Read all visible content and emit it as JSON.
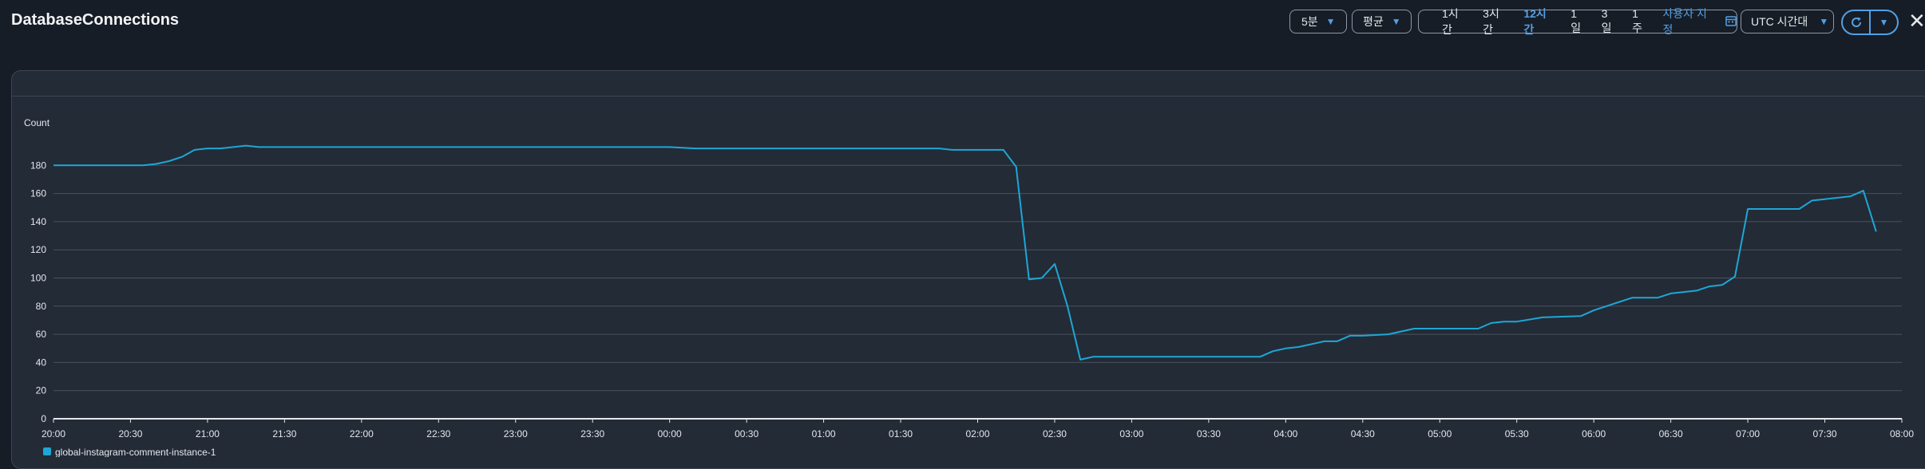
{
  "header": {
    "title": "DatabaseConnections",
    "period": "5분",
    "statistic": "평균",
    "ranges": [
      "1시간",
      "3시간",
      "12시간",
      "1일",
      "3일",
      "1주"
    ],
    "active_range": "12시간",
    "custom_range": "사용자 지정",
    "timezone": "UTC 시간대"
  },
  "colors": {
    "background": "#161d26",
    "panel": "#232b37",
    "accent": "#539fe5",
    "series": "#1ea7d4",
    "grid": "#4a525e"
  },
  "icons": [
    "caret-down-icon",
    "calendar-icon",
    "refresh-icon",
    "close-icon"
  ],
  "chart_data": {
    "type": "line",
    "ylabel": "Count",
    "ylim": [
      0,
      190
    ],
    "yticks": [
      0,
      20,
      40,
      60,
      80,
      100,
      120,
      140,
      160,
      180
    ],
    "xticks": [
      "20:00",
      "20:30",
      "21:00",
      "21:30",
      "22:00",
      "22:30",
      "23:00",
      "23:30",
      "00:00",
      "00:30",
      "01:00",
      "01:30",
      "02:00",
      "02:30",
      "03:00",
      "03:30",
      "04:00",
      "04:30",
      "05:00",
      "05:30",
      "06:00",
      "06:30",
      "07:00",
      "07:30",
      "08:00"
    ],
    "grid": true,
    "legend_position": "bottom-left",
    "series": [
      {
        "name": "global-instagram-comment-instance-1",
        "color": "#1ea7d4",
        "points": [
          [
            "20:00",
            180
          ],
          [
            "20:35",
            180
          ],
          [
            "20:40",
            181
          ],
          [
            "20:45",
            183
          ],
          [
            "20:50",
            186
          ],
          [
            "20:55",
            191
          ],
          [
            "21:00",
            192
          ],
          [
            "21:05",
            192
          ],
          [
            "21:10",
            193
          ],
          [
            "21:15",
            194
          ],
          [
            "21:20",
            193
          ],
          [
            "21:25",
            193
          ],
          [
            "22:00",
            193
          ],
          [
            "23:00",
            193
          ],
          [
            "00:00",
            193
          ],
          [
            "00:10",
            192
          ],
          [
            "01:00",
            192
          ],
          [
            "01:45",
            192
          ],
          [
            "01:50",
            191
          ],
          [
            "02:00",
            191
          ],
          [
            "02:10",
            191
          ],
          [
            "02:15",
            179
          ],
          [
            "02:20",
            99
          ],
          [
            "02:25",
            100
          ],
          [
            "02:30",
            110
          ],
          [
            "02:35",
            80
          ],
          [
            "02:40",
            42
          ],
          [
            "02:45",
            44
          ],
          [
            "03:00",
            44
          ],
          [
            "03:30",
            44
          ],
          [
            "03:50",
            44
          ],
          [
            "03:55",
            48
          ],
          [
            "04:00",
            50
          ],
          [
            "04:05",
            51
          ],
          [
            "04:10",
            53
          ],
          [
            "04:15",
            55
          ],
          [
            "04:20",
            55
          ],
          [
            "04:25",
            59
          ],
          [
            "04:30",
            59
          ],
          [
            "04:40",
            60
          ],
          [
            "04:50",
            64
          ],
          [
            "05:00",
            64
          ],
          [
            "05:15",
            64
          ],
          [
            "05:20",
            68
          ],
          [
            "05:25",
            69
          ],
          [
            "05:30",
            69
          ],
          [
            "05:40",
            72
          ],
          [
            "05:55",
            73
          ],
          [
            "06:00",
            77
          ],
          [
            "06:10",
            83
          ],
          [
            "06:15",
            86
          ],
          [
            "06:25",
            86
          ],
          [
            "06:30",
            89
          ],
          [
            "06:40",
            91
          ],
          [
            "06:45",
            94
          ],
          [
            "06:50",
            95
          ],
          [
            "06:55",
            101
          ],
          [
            "07:00",
            149
          ],
          [
            "07:10",
            149
          ],
          [
            "07:20",
            149
          ],
          [
            "07:25",
            155
          ],
          [
            "07:30",
            156
          ],
          [
            "07:40",
            158
          ],
          [
            "07:45",
            162
          ],
          [
            "07:50",
            133
          ]
        ]
      }
    ]
  }
}
